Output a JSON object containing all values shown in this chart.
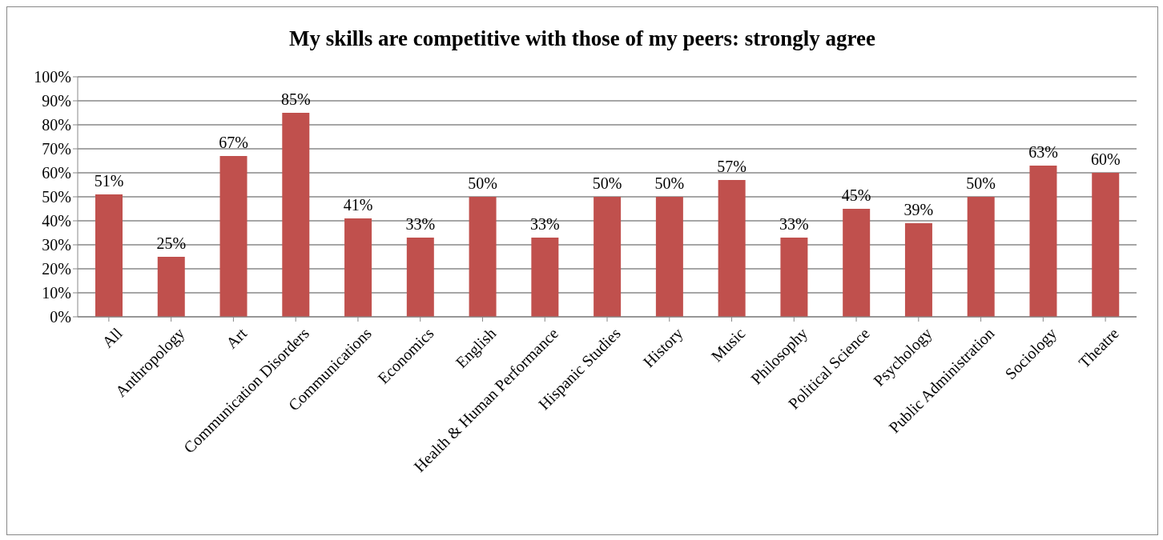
{
  "chart_data": {
    "type": "bar",
    "title": "My skills are competitive with those of my peers: strongly agree",
    "categories": [
      "All",
      "Anthropology",
      "Art",
      "Communication Disorders",
      "Communications",
      "Economics",
      "English",
      "Health & Human Performance",
      "Hispanic Studies",
      "History",
      "Music",
      "Philosophy",
      "Political Science",
      "Psychology",
      "Public Administration",
      "Sociology",
      "Theatre"
    ],
    "values": [
      51,
      25,
      67,
      85,
      41,
      33,
      50,
      33,
      50,
      50,
      57,
      33,
      45,
      39,
      50,
      63,
      60
    ],
    "value_labels": [
      "51%",
      "25%",
      "67%",
      "85%",
      "41%",
      "33%",
      "50%",
      "33%",
      "50%",
      "50%",
      "57%",
      "33%",
      "45%",
      "39%",
      "50%",
      "63%",
      "60%"
    ],
    "color": "#c0504d",
    "ylim": [
      0,
      100
    ],
    "yticks": [
      {
        "value": 0,
        "label": "0%"
      },
      {
        "value": 10,
        "label": "10%"
      },
      {
        "value": 20,
        "label": "20%"
      },
      {
        "value": 30,
        "label": "30%"
      },
      {
        "value": 40,
        "label": "40%"
      },
      {
        "value": 50,
        "label": "50%"
      },
      {
        "value": 60,
        "label": "60%"
      },
      {
        "value": 70,
        "label": "70%"
      },
      {
        "value": 80,
        "label": "80%"
      },
      {
        "value": 90,
        "label": "90%"
      },
      {
        "value": 100,
        "label": "100%"
      }
    ],
    "grid": "y",
    "legend": false
  }
}
